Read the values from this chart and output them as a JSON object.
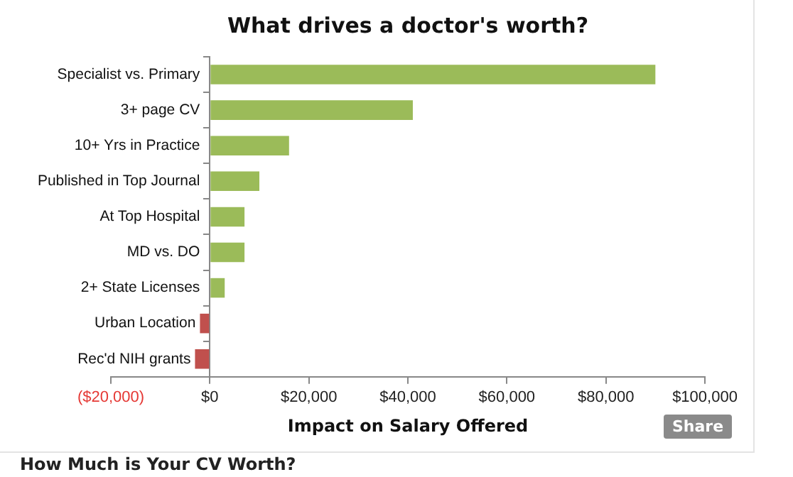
{
  "chart_data": {
    "type": "bar",
    "orientation": "horizontal",
    "title": "What drives a doctor's worth?",
    "xlabel": "Impact on Salary Offered",
    "categories": [
      "Specialist vs. Primary",
      "3+ page CV",
      "10+ Yrs in Practice",
      "Published in Top Journal",
      "At Top Hospital",
      "MD vs. DO",
      "2+ State Licenses",
      "Urban Location",
      "Rec'd NIH grants"
    ],
    "values": [
      90000,
      41000,
      16000,
      10000,
      7000,
      7000,
      3000,
      -2000,
      -3000
    ],
    "colors": [
      "#9bbb59",
      "#9bbb59",
      "#9bbb59",
      "#9bbb59",
      "#9bbb59",
      "#9bbb59",
      "#9bbb59",
      "#c0504d",
      "#c0504d"
    ],
    "xlim": [
      -20000,
      100000
    ],
    "xticks": [
      {
        "value": -20000,
        "label": "($20,000)"
      },
      {
        "value": 0,
        "label": "$0"
      },
      {
        "value": 20000,
        "label": "$20,000"
      },
      {
        "value": 40000,
        "label": "$40,000"
      },
      {
        "value": 60000,
        "label": "$60,000"
      },
      {
        "value": 80000,
        "label": "$80,000"
      },
      {
        "value": 100000,
        "label": "$100,000"
      }
    ],
    "grid": false,
    "legend": false,
    "annotations": [
      "Share",
      "How Much is Your CV Worth?"
    ]
  }
}
